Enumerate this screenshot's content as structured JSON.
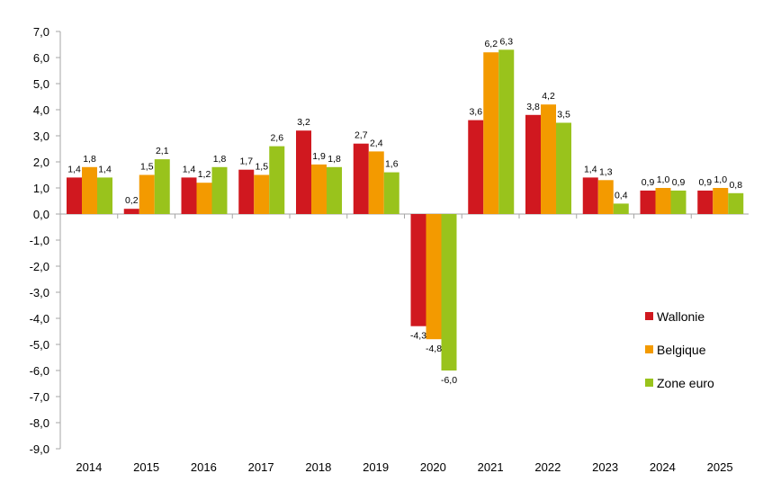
{
  "chart_data": {
    "type": "bar",
    "categories": [
      "2014",
      "2015",
      "2016",
      "2017",
      "2018",
      "2019",
      "2020",
      "2021",
      "2022",
      "2023",
      "2024",
      "2025"
    ],
    "series": [
      {
        "name": "Wallonie",
        "color": "#d0181f",
        "values": [
          1.4,
          0.2,
          1.4,
          1.7,
          3.2,
          2.7,
          -4.3,
          3.6,
          3.8,
          1.4,
          0.9,
          0.9
        ],
        "labels": [
          "1,4",
          "0,2",
          "1,4",
          "1,7",
          "3,2",
          "2,7",
          "-4,3",
          "3,6",
          "3,8",
          "1,4",
          "0,9",
          "0,9"
        ]
      },
      {
        "name": "Belgique",
        "color": "#f39a00",
        "values": [
          1.8,
          1.5,
          1.2,
          1.5,
          1.9,
          2.4,
          -4.8,
          6.2,
          4.2,
          1.3,
          1.0,
          1.0
        ],
        "labels": [
          "1,8",
          "1,5",
          "1,2",
          "1,5",
          "1,9",
          "2,4",
          "-4,8",
          "6,2",
          "4,2",
          "1,3",
          "1,0",
          "1,0"
        ]
      },
      {
        "name": "Zone euro",
        "color": "#99c31c",
        "values": [
          1.4,
          2.1,
          1.8,
          2.6,
          1.8,
          1.6,
          -6.0,
          6.3,
          3.5,
          0.4,
          0.9,
          0.8
        ],
        "labels": [
          "1,4",
          "2,1",
          "1,8",
          "2,6",
          "1,8",
          "1,6",
          "-6,0",
          "6,3",
          "3,5",
          "0,4",
          "0,9",
          "0,8"
        ]
      }
    ],
    "yticks": [
      "7,0",
      "6,0",
      "5,0",
      "4,0",
      "3,0",
      "2,0",
      "1,0",
      "0,0",
      "-1,0",
      "-2,0",
      "-3,0",
      "-4,0",
      "-5,0",
      "-6,0",
      "-7,0",
      "-8,0",
      "-9,0"
    ],
    "ylim": [
      -9,
      7
    ],
    "title": "",
    "xlabel": "",
    "ylabel": "",
    "legend_position": "right",
    "grid": false
  }
}
